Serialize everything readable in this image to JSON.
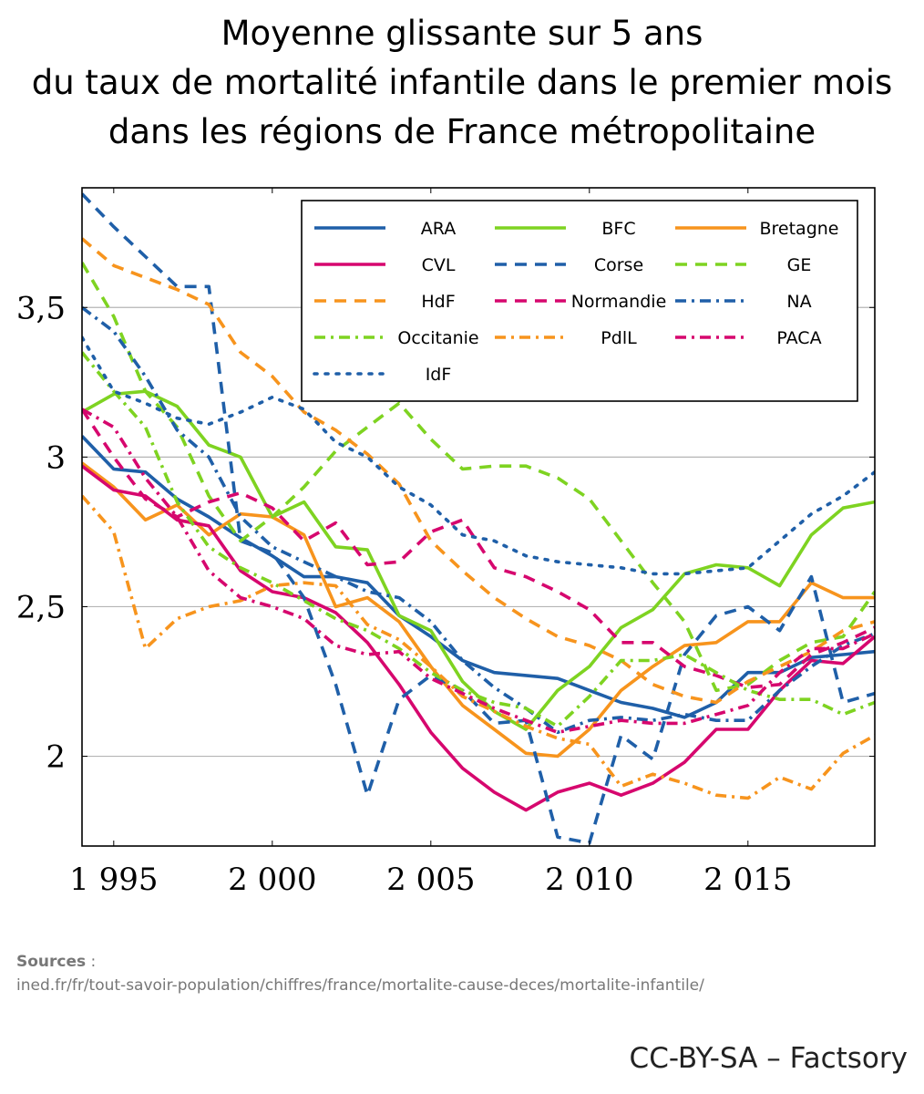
{
  "chart_data": {
    "type": "line",
    "title_lines": [
      "Moyenne glissante sur 5 ans",
      "du taux de mortalité infantile dans le premier mois",
      "dans les régions de France métropolitaine"
    ],
    "xlabel": "",
    "ylabel": "",
    "xlim": [
      1994,
      2019
    ],
    "ylim": [
      1.7,
      3.9
    ],
    "xticks": [
      1995,
      2000,
      2005,
      2010,
      2015
    ],
    "xtick_labels": [
      "1 995",
      "2 000",
      "2 005",
      "2 010",
      "2 015"
    ],
    "yticks": [
      2,
      2.5,
      3,
      3.5
    ],
    "ytick_labels": [
      "2",
      "2,5",
      "3",
      "3,5"
    ],
    "grid": "horizontal",
    "legend_position": "top-right",
    "x": [
      1994,
      1995,
      1996,
      1997,
      1998,
      1999,
      2000,
      2001,
      2002,
      2003,
      2004,
      2005,
      2006,
      2007,
      2008,
      2009,
      2010,
      2011,
      2012,
      2013,
      2014,
      2015,
      2016,
      2017,
      2018,
      2019
    ],
    "series": [
      {
        "name": "ARA",
        "color": "#1f5fa8",
        "dash": "solid",
        "values": [
          3.07,
          2.96,
          2.95,
          2.86,
          2.8,
          2.73,
          2.67,
          2.6,
          2.6,
          2.58,
          2.47,
          2.4,
          2.32,
          2.28,
          2.27,
          2.26,
          2.22,
          2.18,
          2.16,
          2.13,
          2.18,
          2.28,
          2.28,
          2.33,
          2.34,
          2.35
        ]
      },
      {
        "name": "BFC",
        "color": "#7ed321",
        "dash": "solid",
        "values": [
          3.15,
          3.21,
          3.22,
          3.17,
          3.04,
          3.0,
          2.8,
          2.85,
          2.7,
          2.69,
          2.47,
          2.42,
          2.25,
          2.15,
          2.09,
          2.22,
          2.3,
          2.43,
          2.49,
          2.61,
          2.64,
          2.63,
          2.57,
          2.74,
          2.83,
          2.85
        ]
      },
      {
        "name": "Bretagne",
        "color": "#f7941d",
        "dash": "solid",
        "values": [
          2.98,
          2.9,
          2.79,
          2.84,
          2.74,
          2.81,
          2.8,
          2.74,
          2.5,
          2.53,
          2.45,
          2.3,
          2.17,
          2.09,
          2.01,
          2.0,
          2.09,
          2.22,
          2.3,
          2.37,
          2.38,
          2.45,
          2.45,
          2.58,
          2.53,
          2.53
        ]
      },
      {
        "name": "CVL",
        "color": "#d6076e",
        "dash": "solid",
        "values": [
          2.97,
          2.89,
          2.87,
          2.79,
          2.77,
          2.62,
          2.55,
          2.53,
          2.48,
          2.38,
          2.24,
          2.08,
          1.96,
          1.88,
          1.82,
          1.88,
          1.91,
          1.87,
          1.91,
          1.98,
          2.09,
          2.09,
          2.22,
          2.32,
          2.31,
          2.4
        ]
      },
      {
        "name": "Corse",
        "color": "#1f5fa8",
        "dash": "dashed",
        "values": [
          3.88,
          3.77,
          3.67,
          3.57,
          3.57,
          2.72,
          2.68,
          2.53,
          2.24,
          1.87,
          2.19,
          2.27,
          2.22,
          2.11,
          2.12,
          1.73,
          1.71,
          2.07,
          1.99,
          2.34,
          2.47,
          2.5,
          2.42,
          2.6,
          2.18,
          2.21
        ]
      },
      {
        "name": "GE",
        "color": "#7ed321",
        "dash": "dashed",
        "values": [
          3.65,
          3.47,
          3.22,
          3.1,
          2.87,
          2.72,
          2.8,
          2.9,
          3.02,
          3.1,
          3.18,
          3.06,
          2.96,
          2.97,
          2.97,
          2.93,
          2.86,
          2.72,
          2.58,
          2.45,
          2.22,
          2.24,
          2.32,
          2.38,
          2.4,
          2.55
        ]
      },
      {
        "name": "HdF",
        "color": "#f7941d",
        "dash": "dashed",
        "values": [
          3.73,
          3.64,
          3.6,
          3.56,
          3.51,
          3.35,
          3.27,
          3.15,
          3.09,
          3.01,
          2.91,
          2.72,
          2.62,
          2.53,
          2.46,
          2.4,
          2.37,
          2.32,
          2.24,
          2.2,
          2.18,
          2.25,
          2.3,
          2.35,
          2.42,
          2.45
        ]
      },
      {
        "name": "Normandie",
        "color": "#d6076e",
        "dash": "dashed",
        "values": [
          3.16,
          3.0,
          2.86,
          2.8,
          2.85,
          2.88,
          2.83,
          2.72,
          2.78,
          2.64,
          2.65,
          2.75,
          2.79,
          2.63,
          2.6,
          2.55,
          2.49,
          2.38,
          2.38,
          2.3,
          2.27,
          2.23,
          2.24,
          2.34,
          2.38,
          2.43
        ]
      },
      {
        "name": "NA",
        "color": "#1f5fa8",
        "dash": "dashdot",
        "values": [
          3.5,
          3.42,
          3.27,
          3.09,
          3.0,
          2.8,
          2.7,
          2.65,
          2.6,
          2.55,
          2.53,
          2.45,
          2.32,
          2.23,
          2.16,
          2.08,
          2.12,
          2.13,
          2.12,
          2.14,
          2.12,
          2.12,
          2.22,
          2.3,
          2.37,
          2.41
        ]
      },
      {
        "name": "Occitanie",
        "color": "#7ed321",
        "dash": "dashdot",
        "values": [
          3.35,
          3.22,
          3.1,
          2.85,
          2.7,
          2.63,
          2.58,
          2.52,
          2.46,
          2.42,
          2.36,
          2.28,
          2.22,
          2.18,
          2.16,
          2.1,
          2.2,
          2.32,
          2.32,
          2.34,
          2.28,
          2.22,
          2.19,
          2.19,
          2.14,
          2.18
        ]
      },
      {
        "name": "PdlL",
        "color": "#f7941d",
        "dash": "dashdot",
        "values": [
          2.87,
          2.75,
          2.36,
          2.46,
          2.5,
          2.52,
          2.57,
          2.58,
          2.57,
          2.44,
          2.39,
          2.3,
          2.2,
          2.15,
          2.1,
          2.06,
          2.04,
          1.9,
          1.94,
          1.91,
          1.87,
          1.86,
          1.93,
          1.89,
          2.01,
          2.07
        ]
      },
      {
        "name": "PACA",
        "color": "#d6076e",
        "dash": "dashdot",
        "values": [
          3.16,
          3.1,
          2.93,
          2.8,
          2.62,
          2.53,
          2.5,
          2.46,
          2.37,
          2.34,
          2.35,
          2.26,
          2.21,
          2.16,
          2.12,
          2.08,
          2.1,
          2.12,
          2.11,
          2.11,
          2.14,
          2.17,
          2.28,
          2.36,
          2.36,
          2.41
        ]
      },
      {
        "name": "IdF",
        "color": "#1f5fa8",
        "dash": "dotted",
        "values": [
          3.4,
          3.22,
          3.18,
          3.13,
          3.11,
          3.15,
          3.2,
          3.16,
          3.05,
          3.0,
          2.9,
          2.84,
          2.74,
          2.72,
          2.67,
          2.65,
          2.64,
          2.63,
          2.61,
          2.61,
          2.62,
          2.63,
          2.72,
          2.81,
          2.87,
          2.95
        ]
      }
    ]
  },
  "sources": {
    "label": "Sources",
    "separator": " :",
    "url": "ined.fr/fr/tout-savoir-population/chiffres/france/mortalite-cause-deces/mortalite-infantile/"
  },
  "credit": "CC-BY-SA – Factsory"
}
